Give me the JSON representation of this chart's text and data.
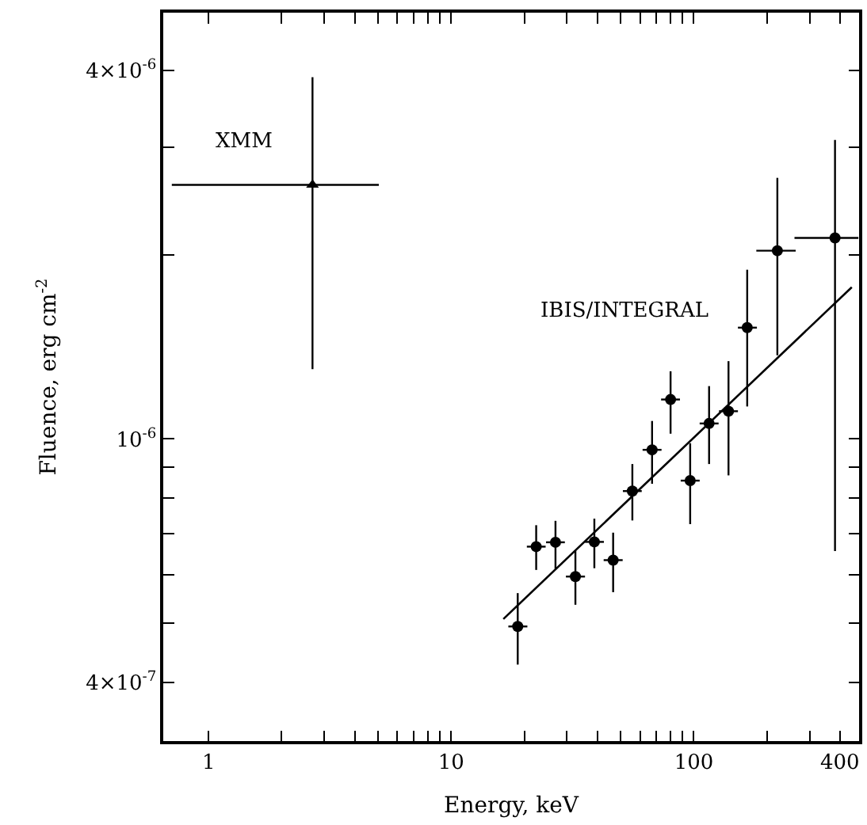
{
  "chart_data": {
    "type": "scatter",
    "xlabel": "Energy, keV",
    "ylabel": "Fluence, erg cm$^{-2}$",
    "log": "xy",
    "xlim": [
      0.65,
      480
    ],
    "ylim": [
      3.21e-07,
      4.97e-06
    ],
    "xticks": [
      1,
      {
        "value": 2,
        "label": null
      },
      {
        "value": 3,
        "label": null
      },
      {
        "value": 4,
        "label": null
      },
      {
        "value": 5,
        "label": null
      },
      {
        "value": 6,
        "label": null
      },
      {
        "value": 7,
        "label": null
      },
      {
        "value": 8,
        "label": null
      },
      {
        "value": 9,
        "label": null
      },
      10,
      {
        "value": 20,
        "label": null
      },
      {
        "value": 30,
        "label": null
      },
      {
        "value": 40,
        "label": null
      },
      {
        "value": 50,
        "label": null
      },
      {
        "value": 60,
        "label": null
      },
      {
        "value": 70,
        "label": null
      },
      {
        "value": 80,
        "label": null
      },
      {
        "value": 90,
        "label": null
      },
      100,
      {
        "value": 200,
        "label": null
      },
      {
        "value": 300,
        "label": null
      },
      400
    ],
    "yticks": [
      {
        "value": 4e-07,
        "label": "4×10$^{-7}$"
      },
      {
        "value": 5e-07,
        "label": null
      },
      {
        "value": 6e-07,
        "label": null
      },
      {
        "value": 7e-07,
        "label": null
      },
      {
        "value": 8e-07,
        "label": null
      },
      {
        "value": 9e-07,
        "label": null
      },
      {
        "value": 1e-06,
        "label": "10$^{-6}$"
      },
      {
        "value": 2e-06,
        "label": null
      },
      {
        "value": 3e-06,
        "label": null
      },
      {
        "value": 4e-06,
        "label": "4×10$^{-6}$"
      }
    ],
    "series": [
      {
        "name": "XMM",
        "marker": "triangle",
        "color": "#000000",
        "x": [
          2.68
        ],
        "values": [
          2.6e-06
        ],
        "errors": [
          [
            1.3e-06,
            3.9e-06
          ]
        ],
        "xerrors": [
          [
            0.705,
            5.03
          ]
        ]
      },
      {
        "name": "IBIS/INTEGRAL",
        "marker": "circle",
        "color": "#000000",
        "x": [
          18.8,
          22.4,
          26.9,
          32.5,
          38.9,
          46.5,
          55.8,
          67.3,
          80.2,
          96.6,
          115.6,
          139,
          166,
          221,
          382
        ],
        "values": [
          4.94e-07,
          6.67e-07,
          6.78e-07,
          5.96e-07,
          6.79e-07,
          6.34e-07,
          8.22e-07,
          9.6e-07,
          1.16e-06,
          8.55e-07,
          1.06e-06,
          1.11e-06,
          1.52e-06,
          2.03e-06,
          2.13e-06
        ],
        "errors": [
          [
            4.28e-07,
            5.6e-07
          ],
          [
            6.11e-07,
            7.23e-07
          ],
          [
            6.14e-07,
            7.35e-07
          ],
          [
            5.36e-07,
            6.56e-07
          ],
          [
            6.15e-07,
            7.41e-07
          ],
          [
            5.62e-07,
            7.03e-07
          ],
          [
            7.36e-07,
            9.1e-07
          ],
          [
            8.45e-07,
            1.07e-06
          ],
          [
            1.02e-06,
            1.29e-06
          ],
          [
            7.26e-07,
            9.84e-07
          ],
          [
            9.1e-07,
            1.22e-06
          ],
          [
            8.72e-07,
            1.34e-06
          ],
          [
            1.13e-06,
            1.89e-06
          ],
          [
            1.37e-06,
            2.67e-06
          ],
          [
            6.56e-07,
            3.08e-06
          ]
        ],
        "xerrors": [
          [
            17.2,
            20.6
          ],
          [
            20.5,
            24.5
          ],
          [
            24.6,
            29.4
          ],
          [
            29.7,
            35.6
          ],
          [
            35.6,
            42.6
          ],
          [
            42.5,
            50.9
          ],
          [
            51.0,
            61.0
          ],
          [
            61.5,
            73.6
          ],
          [
            73.3,
            87.7
          ],
          [
            88.3,
            105.7
          ],
          [
            105.7,
            126.5
          ],
          [
            127,
            152
          ],
          [
            152,
            182
          ],
          [
            181,
            263
          ],
          [
            260,
            477
          ]
        ]
      },
      {
        "type": "line",
        "marker": "none",
        "line_style": "solid",
        "color": "#000000",
        "x": [
          16.4,
          448
        ],
        "values": [
          5.08e-07,
          1.77e-06
        ]
      }
    ]
  }
}
